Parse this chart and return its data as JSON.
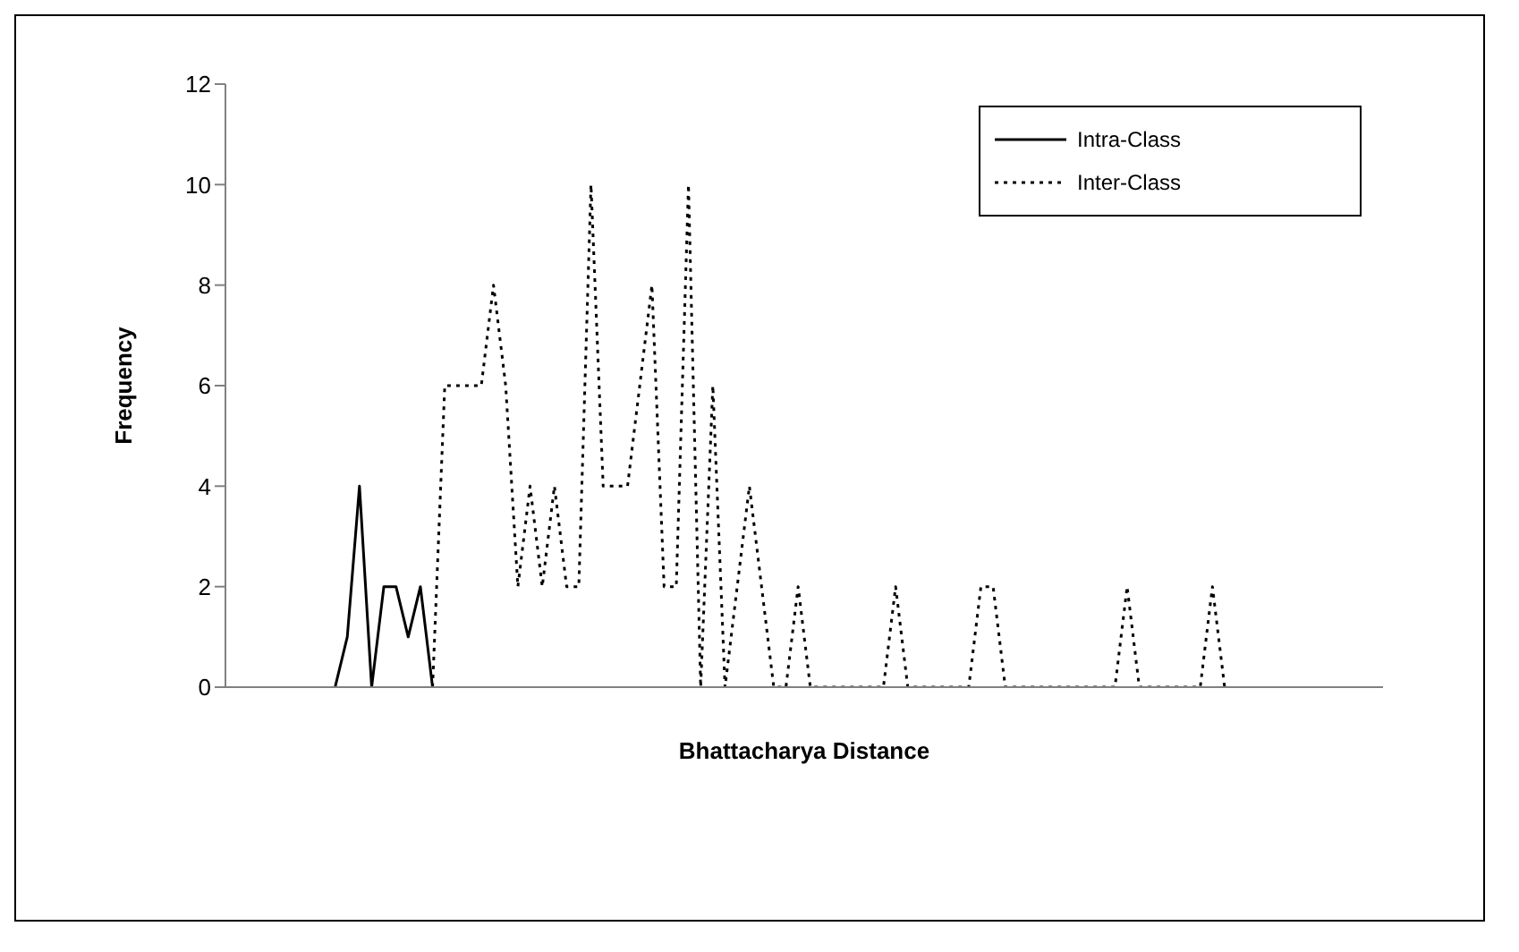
{
  "chart_data": {
    "type": "line",
    "xlabel": "Bhattacharya Distance",
    "ylabel": "Frequency",
    "categories": [
      null,
      null,
      null,
      null,
      null,
      null,
      null,
      null,
      null,
      null,
      null,
      null,
      null,
      null,
      null,
      null,
      null,
      null,
      null,
      null,
      null,
      null,
      null,
      null,
      null,
      null,
      null,
      null,
      null,
      null,
      null,
      null,
      null,
      null,
      null,
      null,
      null,
      null,
      null,
      null,
      null,
      null,
      null,
      null,
      null,
      null,
      null,
      null,
      null,
      null,
      null,
      null,
      null,
      null,
      null,
      null,
      null,
      null,
      null,
      null,
      null,
      null,
      null,
      null,
      null,
      null,
      null,
      null,
      null,
      null,
      null,
      null,
      null,
      null,
      null,
      null,
      null,
      null,
      null,
      null,
      null,
      null,
      null,
      null,
      null,
      null,
      null,
      null,
      null,
      null,
      null,
      null,
      null,
      null,
      null,
      null
    ],
    "series": [
      {
        "name": "Intra-Class",
        "color": "#000000",
        "line_style": "solid",
        "values": [
          null,
          null,
          null,
          null,
          null,
          null,
          null,
          null,
          null,
          0,
          1,
          4,
          0,
          2,
          2,
          1,
          2,
          0,
          null,
          null,
          null,
          null,
          null,
          null,
          null,
          null,
          null,
          null,
          null,
          null,
          null,
          null,
          null,
          null,
          null,
          null,
          null,
          null,
          null,
          null,
          null,
          null,
          null,
          null,
          null,
          null,
          null,
          null,
          null,
          null,
          null,
          null,
          null,
          null,
          null,
          null,
          null,
          null,
          null,
          null,
          null,
          null,
          null,
          null,
          null,
          null,
          null,
          null,
          null,
          null,
          null,
          null,
          null,
          null,
          null,
          null,
          null,
          null,
          null,
          null,
          null,
          null,
          null,
          null,
          null,
          null,
          null,
          null,
          null,
          null,
          null,
          null,
          null,
          null,
          null,
          null
        ]
      },
      {
        "name": "Inter-Class",
        "color": "#000000",
        "line_style": "dotted",
        "values": [
          null,
          null,
          null,
          null,
          null,
          null,
          null,
          null,
          null,
          null,
          null,
          null,
          null,
          null,
          null,
          null,
          null,
          0,
          6,
          6,
          6,
          6,
          8,
          6,
          2,
          4,
          2,
          4,
          2,
          2,
          10,
          4,
          4,
          4,
          6,
          8,
          2,
          2,
          10,
          0,
          6,
          0,
          2,
          4,
          2,
          0,
          0,
          2,
          0,
          0,
          0,
          0,
          0,
          0,
          0,
          2,
          0,
          0,
          0,
          0,
          0,
          0,
          2,
          2,
          0,
          0,
          0,
          0,
          0,
          0,
          0,
          0,
          0,
          0,
          2,
          0,
          0,
          0,
          0,
          0,
          0,
          2,
          0,
          null,
          null,
          null,
          null,
          null,
          null,
          null,
          null,
          null,
          null,
          null,
          null,
          null
        ]
      }
    ],
    "ylim": [
      0,
      12
    ],
    "yticks": [
      0,
      2,
      4,
      6,
      8,
      10,
      12
    ],
    "grid": false,
    "legend": "top right",
    "marker": "none",
    "tick_labels": "y"
  }
}
